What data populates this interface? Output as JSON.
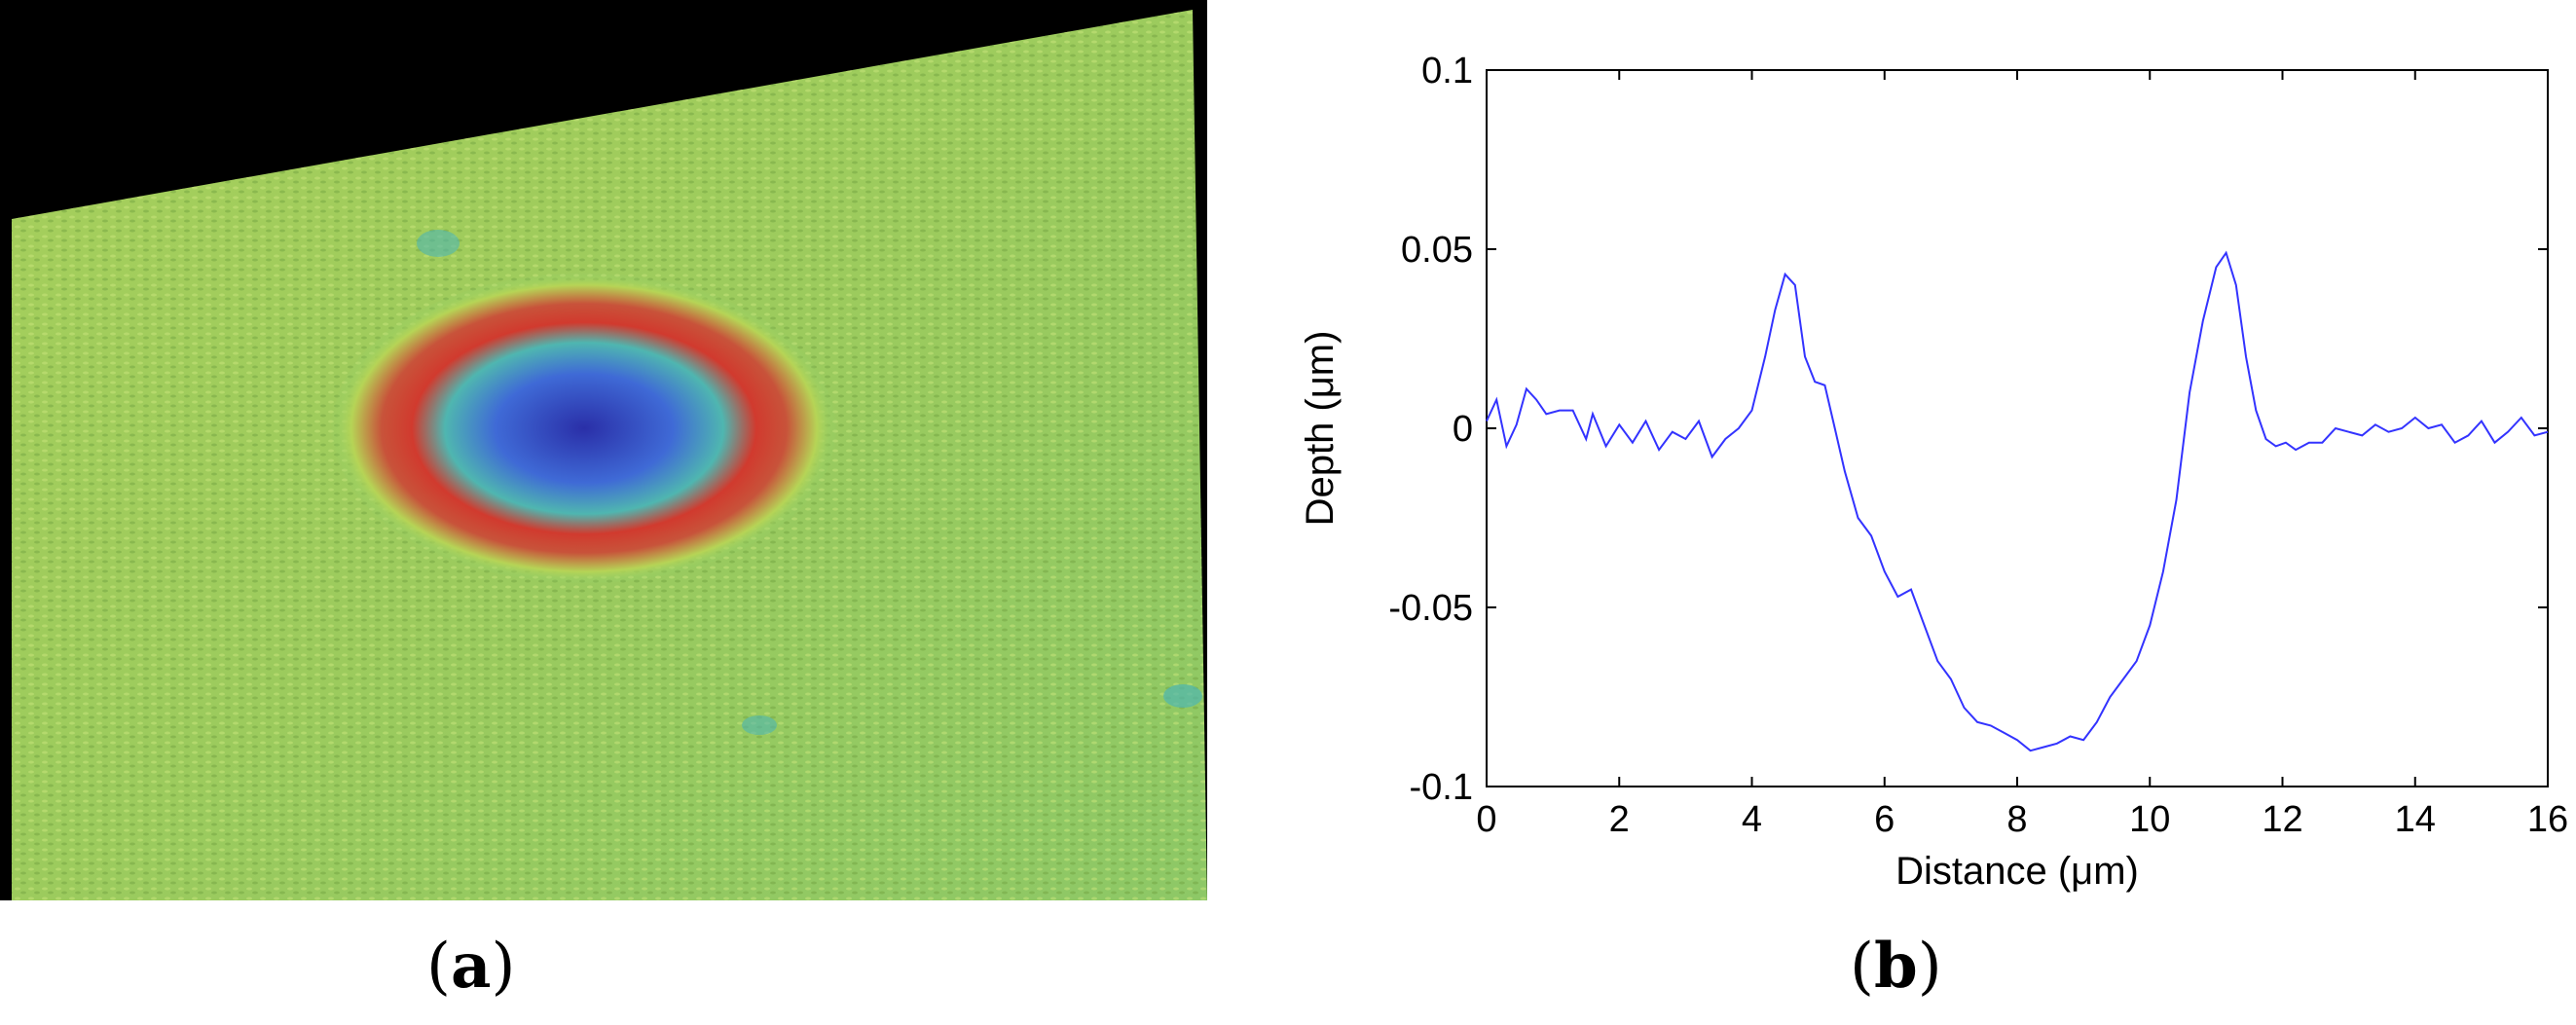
{
  "panels": {
    "a": {
      "open": "(",
      "letter": "a",
      "close": ")"
    },
    "b": {
      "open": "(",
      "letter": "b",
      "close": ")"
    }
  },
  "surface_image": {
    "type": "3d-surface-render",
    "colormap": [
      "#2a2fa8",
      "#3f6ad6",
      "#4fb6b0",
      "#8fd06a",
      "#b6d456",
      "#c8533a",
      "#d13a2e"
    ],
    "background": "#000000"
  },
  "chart_data": {
    "type": "line",
    "xlabel": "Distance (μm)",
    "ylabel": "Depth (μm)",
    "xlim": [
      0,
      16
    ],
    "ylim": [
      -0.1,
      0.1
    ],
    "xticks": [
      0,
      2,
      4,
      6,
      8,
      10,
      12,
      14,
      16
    ],
    "yticks": [
      0.1,
      0.05,
      0,
      -0.05,
      -0.1
    ],
    "xtick_labels": [
      "0",
      "2",
      "4",
      "6",
      "8",
      "10",
      "12",
      "14",
      "16"
    ],
    "ytick_labels": [
      "0.1",
      "0.05",
      "0",
      "-0.05",
      "-0.1"
    ],
    "grid": false,
    "line_color": "#3333ff",
    "series": [
      {
        "x": [
          0,
          0.15,
          0.3,
          0.45,
          0.6,
          0.75,
          0.9,
          1.1,
          1.3,
          1.5,
          1.6,
          1.8,
          2.0,
          2.2,
          2.4,
          2.6,
          2.8,
          3.0,
          3.2,
          3.4,
          3.6,
          3.8,
          4.0,
          4.2,
          4.35,
          4.5,
          4.65,
          4.8,
          4.95,
          5.1,
          5.25,
          5.4,
          5.6,
          5.8,
          6.0,
          6.2,
          6.4,
          6.6,
          6.8,
          7.0,
          7.2,
          7.4,
          7.6,
          7.8,
          8.0,
          8.2,
          8.4,
          8.6,
          8.8,
          9.0,
          9.2,
          9.4,
          9.6,
          9.8,
          10.0,
          10.2,
          10.4,
          10.6,
          10.8,
          11.0,
          11.15,
          11.3,
          11.45,
          11.6,
          11.75,
          11.9,
          12.05,
          12.2,
          12.4,
          12.6,
          12.8,
          13.0,
          13.2,
          13.4,
          13.6,
          13.8,
          14.0,
          14.2,
          14.4,
          14.6,
          14.8,
          15.0,
          15.2,
          15.4,
          15.6,
          15.8,
          16.0
        ],
        "y": [
          0.002,
          0.008,
          -0.005,
          0.001,
          0.011,
          0.008,
          0.004,
          0.005,
          0.005,
          -0.003,
          0.004,
          -0.005,
          0.001,
          -0.004,
          0.002,
          -0.006,
          -0.001,
          -0.003,
          0.002,
          -0.008,
          -0.003,
          0.0,
          0.005,
          0.02,
          0.033,
          0.043,
          0.04,
          0.02,
          0.013,
          0.012,
          0.0,
          -0.012,
          -0.025,
          -0.03,
          -0.04,
          -0.047,
          -0.045,
          -0.055,
          -0.065,
          -0.07,
          -0.078,
          -0.082,
          -0.083,
          -0.085,
          -0.087,
          -0.09,
          -0.089,
          -0.088,
          -0.086,
          -0.087,
          -0.082,
          -0.075,
          -0.07,
          -0.065,
          -0.055,
          -0.04,
          -0.02,
          0.01,
          0.03,
          0.045,
          0.049,
          0.04,
          0.02,
          0.005,
          -0.003,
          -0.005,
          -0.004,
          -0.006,
          -0.004,
          -0.004,
          0.0,
          -0.001,
          -0.002,
          0.001,
          -0.001,
          0.0,
          0.003,
          0.0,
          0.001,
          -0.004,
          -0.002,
          0.002,
          -0.004,
          -0.001,
          0.003,
          -0.002,
          -0.001
        ]
      }
    ]
  }
}
